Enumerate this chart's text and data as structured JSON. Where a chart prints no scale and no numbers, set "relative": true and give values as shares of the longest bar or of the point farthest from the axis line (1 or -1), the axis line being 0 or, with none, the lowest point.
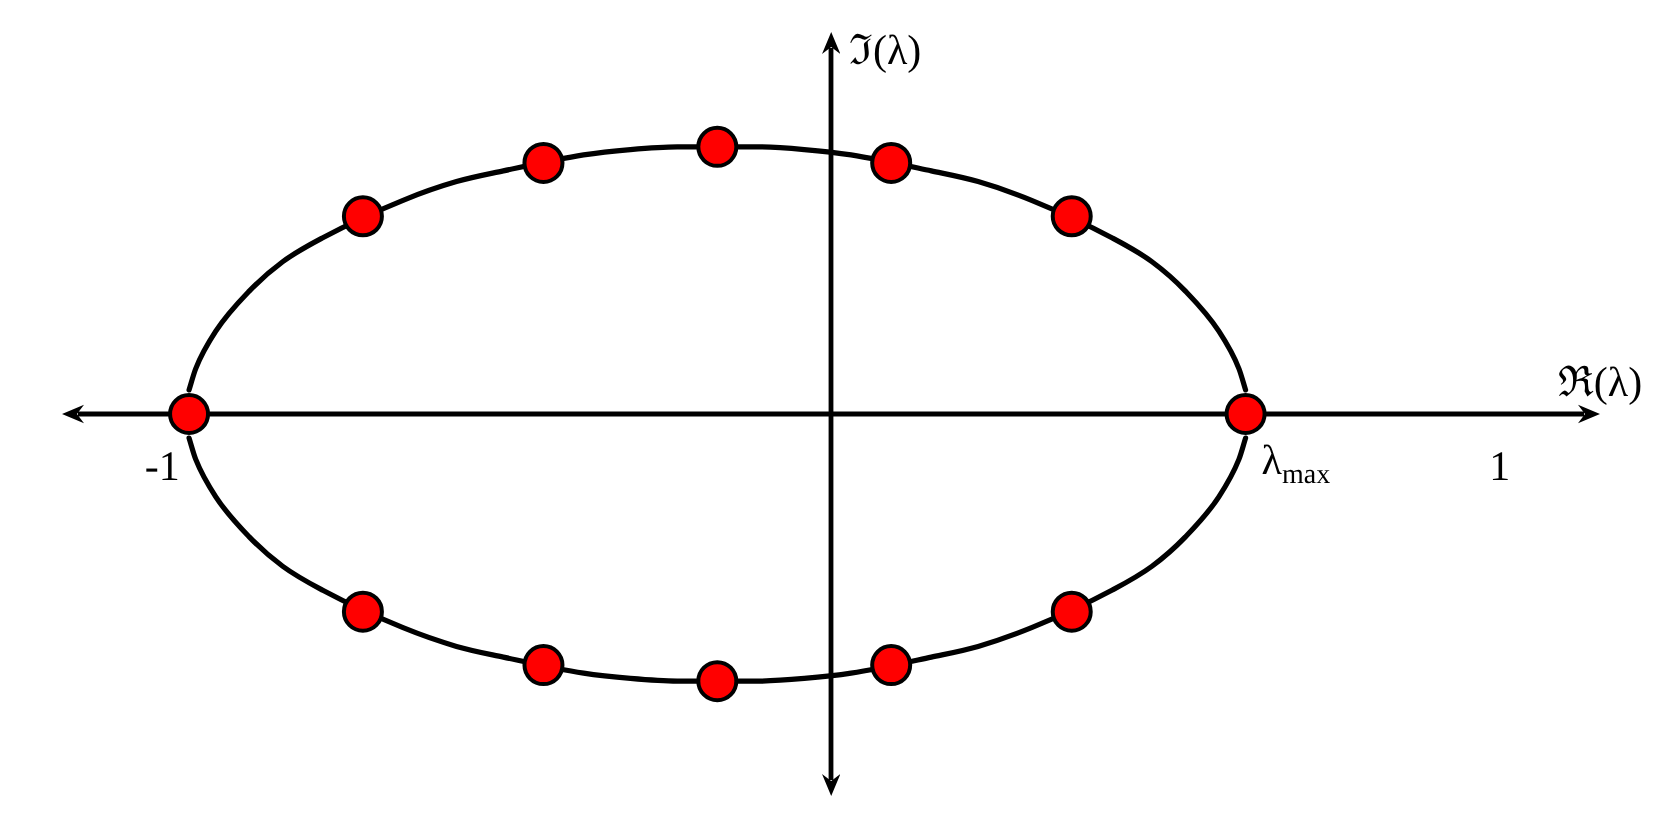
{
  "chart_data": {
    "type": "scatter",
    "xlabel": "ℜ(λ)",
    "ylabel": "ℑ(λ)",
    "relative": true,
    "xlim": [
      -1.15,
      1.15
    ],
    "xticks": [
      -1,
      1
    ],
    "annotations": [
      {
        "text": "λ$_{max}$",
        "x": 0.62,
        "y": 0
      }
    ],
    "series": [
      {
        "type": "line",
        "color": "#000000",
        "marker": "none",
        "x": [
          -0.96,
          -0.95,
          -0.92,
          -0.87,
          -0.82,
          -0.76,
          -0.64,
          -0.56,
          -0.49,
          -0.37,
          -0.3,
          -0.23,
          -0.11,
          -0.04,
          0.03,
          0.15,
          0.22,
          0.3,
          0.42,
          0.48,
          0.53,
          0.58,
          0.61,
          0.62
        ],
        "values": [
          0.09,
          0.17,
          0.31,
          0.46,
          0.57,
          0.66,
          0.8,
          0.87,
          0.91,
          0.97,
          0.99,
          1,
          1,
          0.99,
          0.97,
          0.91,
          0.87,
          0.8,
          0.66,
          0.57,
          0.46,
          0.31,
          0.17,
          0.09
        ]
      },
      {
        "type": "line",
        "color": "#000000",
        "marker": "none",
        "x": [
          -0.96,
          -0.95,
          -0.92,
          -0.87,
          -0.82,
          -0.76,
          -0.64,
          -0.56,
          -0.49,
          -0.37,
          -0.3,
          -0.23,
          -0.11,
          -0.04,
          0.03,
          0.15,
          0.22,
          0.3,
          0.42,
          0.48,
          0.53,
          0.58,
          0.61,
          0.62
        ],
        "values": [
          -0.09,
          -0.17,
          -0.31,
          -0.46,
          -0.57,
          -0.66,
          -0.8,
          -0.87,
          -0.91,
          -0.97,
          -0.99,
          -1,
          -1,
          -0.99,
          -0.97,
          -0.91,
          -0.87,
          -0.8,
          -0.66,
          -0.57,
          -0.46,
          -0.31,
          -0.17,
          -0.09
        ]
      },
      {
        "type": "scatter",
        "color": "#ff0000",
        "marker": "circle",
        "x": [
          -0.96,
          -0.7,
          -0.43,
          -0.17,
          0.09,
          0.36,
          0.62,
          0.36,
          0.09,
          -0.17,
          -0.43,
          -0.7
        ],
        "values": [
          0,
          0.74,
          0.94,
          1,
          0.94,
          0.74,
          0,
          -0.74,
          -0.94,
          -1,
          -0.94,
          -0.74
        ]
      }
    ]
  }
}
